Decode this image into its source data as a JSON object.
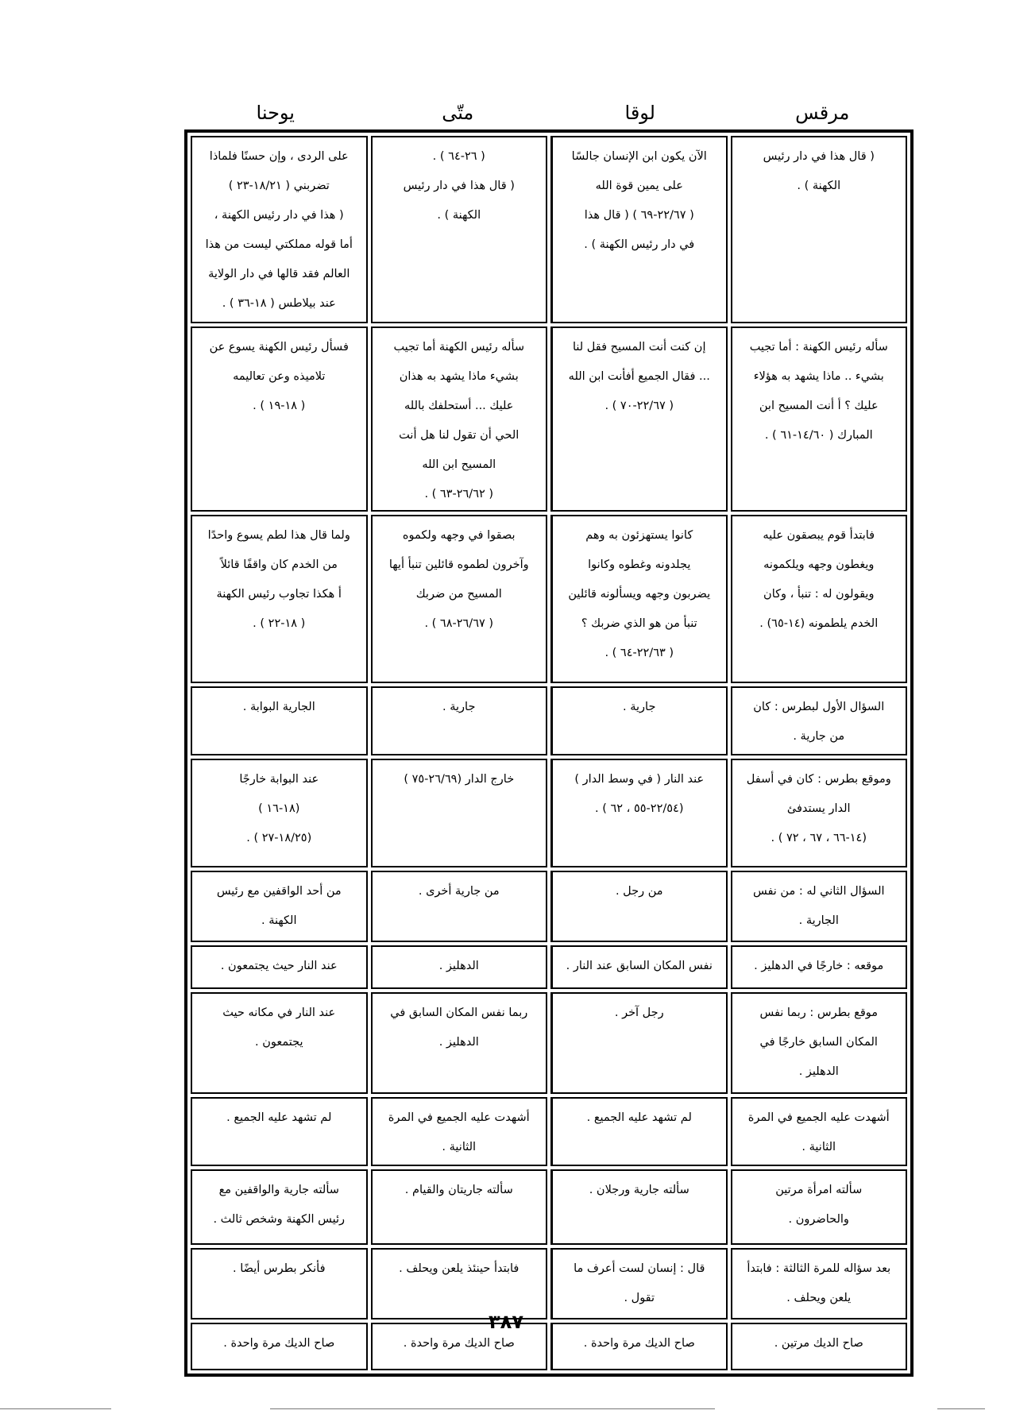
{
  "headers": [
    "مرقس",
    "لوقا",
    "متّى",
    "يوحنا"
  ],
  "rows": [
    [
      [
        "( قال هذا في دار رئيس",
        "الكهنة ) ."
      ],
      [
        "الآن يكون ابن الإنسان جالسًا",
        "على يمين قوة الله",
        "( ٢٢/٦٧-٦٩ ) ( قال هذا",
        "في دار رئيس الكهنة ) ."
      ],
      [
        "( ٢٦-٦٤ ) .",
        "( قال هذا في دار رئيس",
        "الكهنة ) ."
      ],
      [
        "على الردى ، وإن حسنًا فلماذا",
        "تضربني ( ١٨/٢١-٢٣ )",
        "( هذا في دار رئيس الكهنة ،",
        "أما قوله مملكتي ليست من هذا",
        "العالم فقد قالها في دار الولاية",
        "عند بيلاطس ( ١٨-٣٦ ) ."
      ]
    ],
    [
      [
        "سأله رئيس الكهنة : أما تجيب",
        "بشيء .. ماذا يشهد به هؤلاء",
        "عليك ؟ أ أنت المسيح ابن",
        "المبارك ( ١٤/٦٠-٦١ ) ."
      ],
      [
        "إن كنت أنت المسيح فقل لنا",
        "... فقال الجميع أفأنت ابن الله",
        "( ٢٢/٦٧-٧٠ ) ."
      ],
      [
        "سأله رئيس الكهنة أما تجيب",
        "بشيء ماذا يشهد به هذان",
        "عليك ... أستحلفك بالله",
        "الحي أن تقول لنا هل أنت",
        "المسيح ابن الله",
        "( ٢٦/٦٢-٦٣ ) ."
      ],
      [
        "فسأل رئيس الكهنة يسوع عن",
        "تلاميذه وعن تعاليمه",
        "( ١٨-١٩ ) ."
      ]
    ],
    [
      [
        "فابتدأ قوم يبصقون عليه",
        "ويغطون وجهه ويلكمونه",
        "ويقولون له : تنبأ ، وكان",
        "الخدم يلطمونه (١٤-٦٥) ."
      ],
      [
        "كانوا يستهزئون به وهم",
        "يجلدونه وغطوه وكانوا",
        "يضربون وجهه ويسألونه قائلين",
        "تنبأ من هو الذي ضربك ؟",
        "( ٢٢/٦٣-٦٤ ) ."
      ],
      [
        "بصقوا في وجهه ولكموه",
        "وآخرون لطموه قائلين تنبأ أيها",
        "المسيح من ضربك",
        "( ٢٦/٦٧-٦٨ ) ."
      ],
      [
        "ولما قال هذا لطم يسوع واحدًا",
        "من الخدم كان واقفًا قائلاً",
        "أ هكذا تجاوب رئيس الكهنة",
        "( ١٨-٢٢ ) ."
      ]
    ],
    [
      [
        "السؤال الأول لبطرس : كان",
        "من جارية ."
      ],
      [
        "جارية ."
      ],
      [
        "جارية ."
      ],
      [
        "الجارية البوابة ."
      ]
    ],
    [
      [
        "وموقع بطرس : كان في أسفل",
        "الدار يستدفئ",
        "(١٤-٦٦ ، ٦٧ ، ٧٢ ) ."
      ],
      [
        "عند النار ( في وسط الدار )",
        "(٢٢/٥٤-٥٥ ، ٦٢ ) ."
      ],
      [
        "خارج الدار (٢٦/٦٩-٧٥ )"
      ],
      [
        "عند البوابة خارجًا",
        "(١٨-١٦ )",
        "(١٨/٢٥-٢٧ ) ."
      ]
    ],
    [
      [
        "السؤال الثاني له : من نفس",
        "الجارية ."
      ],
      [
        "من رجل ."
      ],
      [
        "من جارية أخرى ."
      ],
      [
        "من أحد الواقفين مع رئيس",
        "الكهنة ."
      ]
    ],
    [
      [
        "موقعه : خارجًا في الدهليز ."
      ],
      [
        "نفس المكان السابق عند النار ."
      ],
      [
        "الدهليز ."
      ],
      [
        "عند النار حيث يجتمعون ."
      ]
    ],
    [
      [
        "موقع بطرس : ربما نفس",
        "المكان السابق خارجًا في",
        "الدهليز ."
      ],
      [
        "رجل آخر ."
      ],
      [
        "ربما نفس المكان السابق في",
        "الدهليز ."
      ],
      [
        "عند النار في مكانه حيث",
        "يجتمعون ."
      ]
    ],
    [
      [
        "أشهدت عليه الجميع في المرة",
        "الثانية ."
      ],
      [
        "لم تشهد عليه الجميع ."
      ],
      [
        "أشهدت عليه الجميع في المرة",
        "الثانية ."
      ],
      [
        "لم تشهد عليه الجميع ."
      ]
    ],
    [
      [
        "سألته امرأة مرتين",
        "والحاضرون ."
      ],
      [
        "سألته جارية ورجلان ."
      ],
      [
        "سألته جاريتان والقيام ."
      ],
      [
        "سألته جارية والواقفين مع",
        "رئيس الكهنة وشخص ثالث ."
      ]
    ],
    [
      [
        "بعد سؤاله للمرة الثالثة : فابتدأ",
        "يلعن ويحلف ."
      ],
      [
        "قال : إنسان لست أعرف ما",
        "تقول ."
      ],
      [
        "فابتدأ حينئذ يلعن ويحلف ."
      ],
      [
        "فأنكر بطرس أيضًا ."
      ]
    ],
    [
      [
        "صاح الديك مرتين ."
      ],
      [
        "صاح الديك مرة واحدة ."
      ],
      [
        "صاح الديك مرة واحدة ."
      ],
      [
        "صاح الديك مرة واحدة ."
      ]
    ]
  ],
  "page_number": "٣٨٧"
}
